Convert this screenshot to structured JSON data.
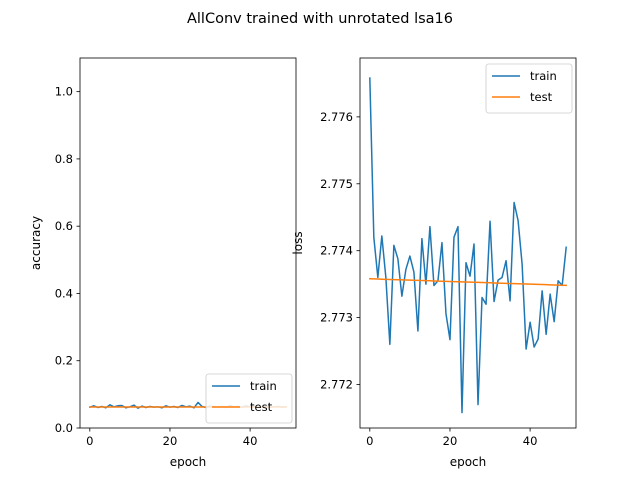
{
  "figure": {
    "suptitle": "AllConv trained with unrotated lsa16"
  },
  "chart_data": [
    {
      "type": "line",
      "xlabel": "epoch",
      "ylabel": "accuracy",
      "xlim": [
        -2.45,
        51.45
      ],
      "ylim": [
        0.0,
        1.1
      ],
      "xticks": [
        0,
        20,
        40
      ],
      "yticks": [
        0.0,
        0.2,
        0.4,
        0.6,
        0.8,
        1.0
      ],
      "ytick_labels": [
        "0.0",
        "0.2",
        "0.4",
        "0.6",
        "0.8",
        "1.0"
      ],
      "legend": {
        "position": "lower-right",
        "entries": [
          "train",
          "test"
        ]
      },
      "grid": false,
      "series": [
        {
          "name": "train",
          "color": "#1f77b4",
          "x": [
            0,
            1,
            2,
            3,
            4,
            5,
            6,
            7,
            8,
            9,
            10,
            11,
            12,
            13,
            14,
            15,
            16,
            17,
            18,
            19,
            20,
            21,
            22,
            23,
            24,
            25,
            26,
            27,
            28,
            29,
            30,
            31,
            32,
            33,
            34,
            35,
            36,
            37,
            38,
            39,
            40,
            41,
            42,
            43,
            44,
            45,
            46,
            47,
            48,
            49
          ],
          "y": [
            0.062,
            0.066,
            0.061,
            0.064,
            0.06,
            0.069,
            0.063,
            0.066,
            0.067,
            0.06,
            0.063,
            0.068,
            0.059,
            0.065,
            0.061,
            0.064,
            0.062,
            0.063,
            0.06,
            0.066,
            0.062,
            0.064,
            0.061,
            0.067,
            0.063,
            0.065,
            0.06,
            0.076,
            0.064,
            0.061,
            0.065,
            0.063,
            0.062,
            0.064,
            0.061,
            0.066,
            0.063,
            0.064,
            0.062,
            0.065,
            0.063,
            0.064,
            0.062,
            0.063,
            0.064,
            0.062,
            0.063,
            0.064,
            0.062,
            0.063
          ]
        },
        {
          "name": "test",
          "color": "#ff7f0e",
          "x": [
            0,
            1,
            2,
            3,
            4,
            5,
            6,
            7,
            8,
            9,
            10,
            11,
            12,
            13,
            14,
            15,
            16,
            17,
            18,
            19,
            20,
            21,
            22,
            23,
            24,
            25,
            26,
            27,
            28,
            29,
            30,
            31,
            32,
            33,
            34,
            35,
            36,
            37,
            38,
            39,
            40,
            41,
            42,
            43,
            44,
            45,
            46,
            47,
            48,
            49
          ],
          "y": [
            0.0625,
            0.0625,
            0.0625,
            0.0625,
            0.0625,
            0.0625,
            0.0625,
            0.0625,
            0.0625,
            0.0625,
            0.0625,
            0.0625,
            0.0625,
            0.0625,
            0.0625,
            0.0625,
            0.0625,
            0.0625,
            0.0625,
            0.0625,
            0.0625,
            0.0625,
            0.0625,
            0.0625,
            0.0625,
            0.0625,
            0.0625,
            0.0625,
            0.0625,
            0.0625,
            0.0625,
            0.0625,
            0.0625,
            0.0625,
            0.0625,
            0.0625,
            0.0625,
            0.0625,
            0.0625,
            0.0625,
            0.0625,
            0.0625,
            0.0625,
            0.0625,
            0.0625,
            0.0625,
            0.0625,
            0.0625,
            0.0625,
            0.0625
          ]
        }
      ]
    },
    {
      "type": "line",
      "xlabel": "epoch",
      "ylabel": "loss",
      "xlim": [
        -2.45,
        51.45
      ],
      "ylim": [
        2.77135,
        2.77688
      ],
      "xticks": [
        0,
        20,
        40
      ],
      "yticks": [
        2.772,
        2.773,
        2.774,
        2.775,
        2.776
      ],
      "ytick_labels": [
        "2.772",
        "2.773",
        "2.774",
        "2.775",
        "2.776"
      ],
      "legend": {
        "position": "upper-right",
        "entries": [
          "train",
          "test"
        ]
      },
      "grid": false,
      "series": [
        {
          "name": "train",
          "color": "#1f77b4",
          "x": [
            0,
            1,
            2,
            3,
            4,
            5,
            6,
            7,
            8,
            9,
            10,
            11,
            12,
            13,
            14,
            15,
            16,
            17,
            18,
            19,
            20,
            21,
            22,
            23,
            24,
            25,
            26,
            27,
            28,
            29,
            30,
            31,
            32,
            33,
            34,
            35,
            36,
            37,
            38,
            39,
            40,
            41,
            42,
            43,
            44,
            45,
            46,
            47,
            48,
            49
          ],
          "y": [
            2.77658,
            2.7742,
            2.7736,
            2.77422,
            2.7736,
            2.7726,
            2.77408,
            2.77388,
            2.77332,
            2.77372,
            2.77392,
            2.77368,
            2.7728,
            2.77418,
            2.7735,
            2.77436,
            2.77348,
            2.77355,
            2.77412,
            2.77306,
            2.77267,
            2.7742,
            2.77436,
            2.77158,
            2.77382,
            2.77362,
            2.7741,
            2.7717,
            2.7733,
            2.7732,
            2.77444,
            2.77324,
            2.77356,
            2.7736,
            2.77385,
            2.77325,
            2.77472,
            2.77445,
            2.7738,
            2.77253,
            2.77293,
            2.77256,
            2.77268,
            2.7734,
            2.77275,
            2.77335,
            2.77294,
            2.77355,
            2.77348,
            2.77405
          ]
        },
        {
          "name": "test",
          "color": "#ff7f0e",
          "x": [
            0,
            1,
            2,
            3,
            4,
            5,
            6,
            7,
            8,
            9,
            10,
            11,
            12,
            13,
            14,
            15,
            16,
            17,
            18,
            19,
            20,
            21,
            22,
            23,
            24,
            25,
            26,
            27,
            28,
            29,
            30,
            31,
            32,
            33,
            34,
            35,
            36,
            37,
            38,
            39,
            40,
            41,
            42,
            43,
            44,
            45,
            46,
            47,
            48,
            49
          ],
          "y": [
            2.77358,
            2.773578,
            2.773576,
            2.773574,
            2.773572,
            2.77357,
            2.773568,
            2.773566,
            2.773564,
            2.773562,
            2.77356,
            2.773558,
            2.773556,
            2.773554,
            2.773552,
            2.77355,
            2.773548,
            2.773546,
            2.773544,
            2.773542,
            2.77354,
            2.773538,
            2.773536,
            2.773534,
            2.773532,
            2.77353,
            2.773528,
            2.773526,
            2.773524,
            2.773522,
            2.77352,
            2.773518,
            2.773516,
            2.773514,
            2.773512,
            2.77351,
            2.773508,
            2.773506,
            2.773504,
            2.773502,
            2.7735,
            2.773498,
            2.773496,
            2.773494,
            2.773492,
            2.77349,
            2.773488,
            2.773486,
            2.773484,
            2.773482
          ]
        }
      ]
    }
  ]
}
